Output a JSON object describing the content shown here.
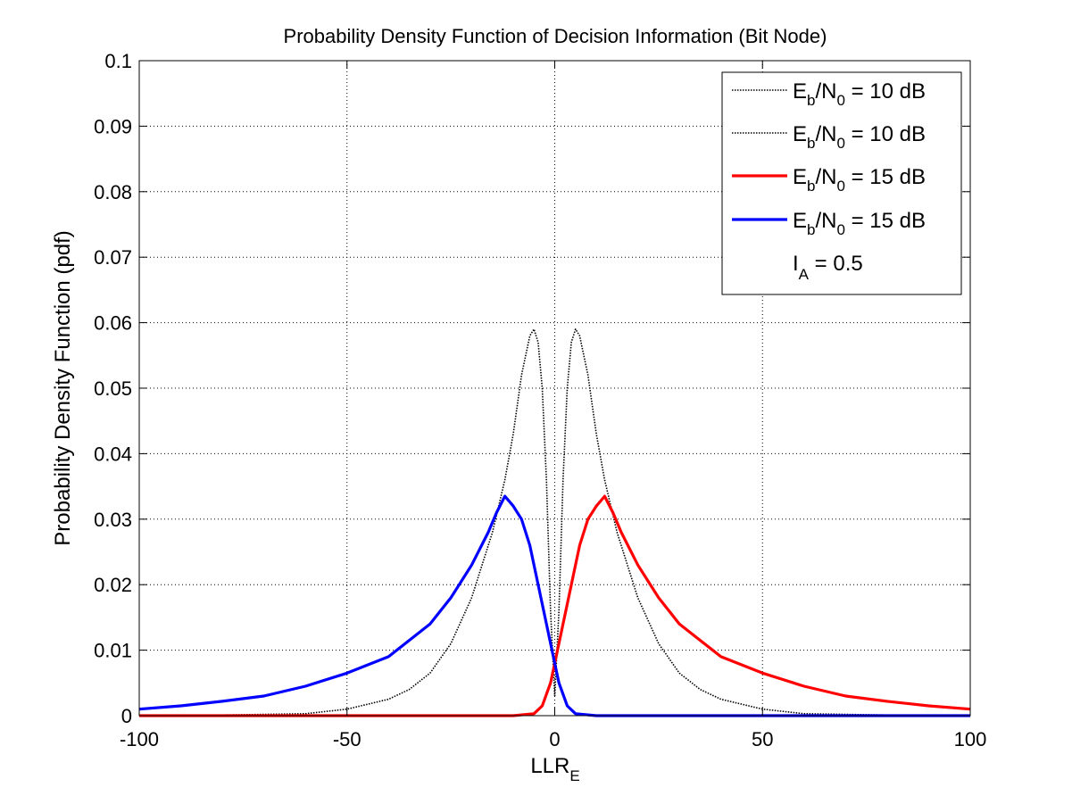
{
  "chart_data": {
    "type": "line",
    "title": "Probability Density Function of Decision Information (Bit Node)",
    "xlabel": {
      "main": "LLR",
      "sub": "E"
    },
    "ylabel": "Probability Density Function (pdf)",
    "xlim": [
      -100,
      100
    ],
    "ylim": [
      0,
      0.1
    ],
    "xticks": [
      -100,
      -50,
      0,
      50,
      100
    ],
    "xtick_labels": [
      "-100",
      "-50",
      "0",
      "50",
      "100"
    ],
    "yticks": [
      0,
      0.01,
      0.02,
      0.03,
      0.04,
      0.05,
      0.06,
      0.07,
      0.08,
      0.09,
      0.1
    ],
    "ytick_labels": [
      "0",
      "0.01",
      "0.02",
      "0.03",
      "0.04",
      "0.05",
      "0.06",
      "0.07",
      "0.08",
      "0.09",
      "0.1"
    ],
    "grid": true,
    "legend_position": "top-right",
    "legend": [
      {
        "main": "E",
        "sub1": "b",
        "mid": "/N",
        "sub2": "0",
        "tail": " = 10 dB",
        "color": "#000000",
        "style": "dotted"
      },
      {
        "main": "E",
        "sub1": "b",
        "mid": "/N",
        "sub2": "0",
        "tail": " = 10 dB",
        "color": "#000000",
        "style": "dotted"
      },
      {
        "main": "E",
        "sub1": "b",
        "mid": "/N",
        "sub2": "0",
        "tail": " = 15 dB",
        "color": "#ff0000",
        "style": "solid"
      },
      {
        "main": "E",
        "sub1": "b",
        "mid": "/N",
        "sub2": "0",
        "tail": " = 15 dB",
        "color": "#0000ff",
        "style": "solid"
      }
    ],
    "legend_note": {
      "main": "I",
      "sub": "A",
      "tail": " = 0.5"
    },
    "series": [
      {
        "color": "#000000",
        "style": "dotted",
        "x": [
          -100,
          -80,
          -60,
          -50,
          -40,
          -35,
          -30,
          -25,
          -20,
          -15,
          -12,
          -10,
          -8,
          -6,
          -5,
          -4,
          -3,
          -2,
          -1,
          0
        ],
        "y": [
          0.0,
          0.0001,
          0.0003,
          0.001,
          0.0025,
          0.004,
          0.0065,
          0.011,
          0.018,
          0.028,
          0.036,
          0.043,
          0.052,
          0.058,
          0.059,
          0.057,
          0.05,
          0.036,
          0.016,
          0.003
        ]
      },
      {
        "color": "#000000",
        "style": "dotted",
        "x": [
          0,
          1,
          2,
          3,
          4,
          5,
          6,
          8,
          10,
          12,
          15,
          20,
          25,
          30,
          35,
          40,
          50,
          60,
          80,
          100
        ],
        "y": [
          0.003,
          0.016,
          0.036,
          0.05,
          0.057,
          0.059,
          0.058,
          0.052,
          0.043,
          0.036,
          0.028,
          0.018,
          0.011,
          0.0065,
          0.004,
          0.0025,
          0.001,
          0.0003,
          0.0001,
          0.0
        ]
      },
      {
        "color": "#ff0000",
        "style": "solid",
        "x": [
          -100,
          -20,
          -10,
          -5,
          -3,
          -1,
          0,
          2,
          4,
          6,
          8,
          10,
          12,
          14,
          16,
          20,
          25,
          30,
          40,
          50,
          60,
          70,
          80,
          90,
          100
        ],
        "y": [
          0.0,
          0.0,
          0.0,
          0.0003,
          0.0015,
          0.005,
          0.008,
          0.014,
          0.02,
          0.026,
          0.03,
          0.032,
          0.0335,
          0.031,
          0.028,
          0.023,
          0.018,
          0.014,
          0.009,
          0.0065,
          0.0045,
          0.003,
          0.0022,
          0.0015,
          0.001
        ]
      },
      {
        "color": "#0000ff",
        "style": "solid",
        "x": [
          -100,
          -90,
          -80,
          -70,
          -60,
          -50,
          -40,
          -30,
          -25,
          -20,
          -16,
          -14,
          -12,
          -10,
          -8,
          -6,
          -4,
          -2,
          0,
          1,
          3,
          5,
          10,
          20,
          100
        ],
        "y": [
          0.001,
          0.0015,
          0.0022,
          0.003,
          0.0045,
          0.0065,
          0.009,
          0.014,
          0.018,
          0.023,
          0.028,
          0.031,
          0.0335,
          0.032,
          0.03,
          0.026,
          0.02,
          0.014,
          0.008,
          0.005,
          0.0015,
          0.0003,
          0.0,
          0.0,
          0.0
        ]
      }
    ]
  }
}
